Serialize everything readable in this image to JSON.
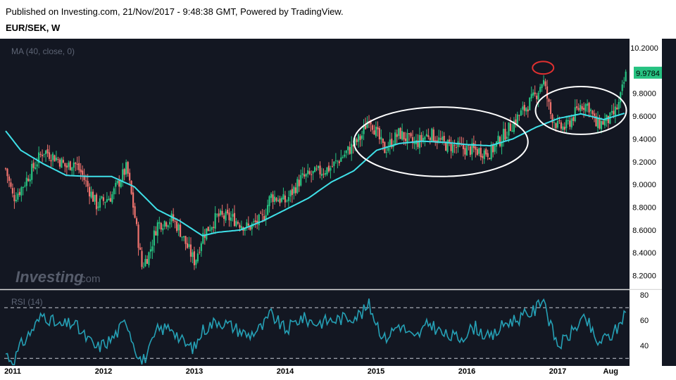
{
  "header": {
    "published": "Published on Investing.com, 21/Nov/2017 - 9:48:38 GMT, Powered by TradingView.",
    "symbol": "EUR/SEK, W"
  },
  "colors": {
    "background": "#131722",
    "up": "#26c281",
    "down": "#f0736e",
    "ma": "#3fe0e8",
    "rsi": "#25a0b5",
    "price_tag": "#26c281",
    "ellipse": "#ffffff",
    "peak_marker": "#e03030"
  },
  "chart_data": [
    {
      "type": "candlestick",
      "indicator_label": "MA (40, close, 0)",
      "y_ticks": [
        "10.2000",
        "9.8000",
        "9.6000",
        "9.4000",
        "9.2000",
        "9.0000",
        "8.8000",
        "8.6000",
        "8.4000",
        "8.2000"
      ],
      "ylim": [
        8.08,
        10.28
      ],
      "last_price": "9.9784",
      "x_ticks": [
        "2011",
        "2012",
        "2013",
        "2014",
        "2015",
        "2016",
        "2017",
        "Aug"
      ],
      "close_anchors": [
        [
          "2011-01",
          9.14
        ],
        [
          "2011-02",
          8.88
        ],
        [
          "2011-03",
          8.96
        ],
        [
          "2011-06",
          9.3
        ],
        [
          "2011-08",
          9.22
        ],
        [
          "2011-09",
          9.15
        ],
        [
          "2011-10",
          9.2
        ],
        [
          "2011-11",
          9.1
        ],
        [
          "2012-01",
          8.82
        ],
        [
          "2012-03",
          8.9
        ],
        [
          "2012-05",
          9.15
        ],
        [
          "2012-06",
          8.75
        ],
        [
          "2012-07",
          8.28
        ],
        [
          "2012-08",
          8.4
        ],
        [
          "2012-09",
          8.65
        ],
        [
          "2012-11",
          8.7
        ],
        [
          "2012-12",
          8.6
        ],
        [
          "2013-01",
          8.45
        ],
        [
          "2013-02",
          8.32
        ],
        [
          "2013-03",
          8.55
        ],
        [
          "2013-05",
          8.72
        ],
        [
          "2013-07",
          8.7
        ],
        [
          "2013-09",
          8.62
        ],
        [
          "2013-11",
          8.7
        ],
        [
          "2013-12",
          8.9
        ],
        [
          "2014-02",
          8.85
        ],
        [
          "2014-04",
          9.05
        ],
        [
          "2014-06",
          9.1
        ],
        [
          "2014-08",
          9.15
        ],
        [
          "2014-10",
          9.28
        ],
        [
          "2014-12",
          9.42
        ],
        [
          "2015-01",
          9.6
        ],
        [
          "2015-03",
          9.3
        ],
        [
          "2015-05",
          9.45
        ],
        [
          "2015-07",
          9.35
        ],
        [
          "2015-09",
          9.45
        ],
        [
          "2015-11",
          9.35
        ],
        [
          "2016-01",
          9.32
        ],
        [
          "2016-03",
          9.3
        ],
        [
          "2016-05",
          9.28
        ],
        [
          "2016-07",
          9.45
        ],
        [
          "2016-09",
          9.62
        ],
        [
          "2016-11",
          9.78
        ],
        [
          "2016-12",
          9.92
        ],
        [
          "2017-01",
          9.62
        ],
        [
          "2017-02",
          9.5
        ],
        [
          "2017-03",
          9.5
        ],
        [
          "2017-04",
          9.6
        ],
        [
          "2017-05",
          9.7
        ],
        [
          "2017-06",
          9.7
        ],
        [
          "2017-07",
          9.52
        ],
        [
          "2017-08",
          9.55
        ],
        [
          "2017-09",
          9.58
        ],
        [
          "2017-10",
          9.7
        ],
        [
          "2017-11",
          9.98
        ]
      ],
      "ma_anchors": [
        [
          "2011-01",
          9.47
        ],
        [
          "2011-03",
          9.3
        ],
        [
          "2011-06",
          9.18
        ],
        [
          "2011-09",
          9.08
        ],
        [
          "2011-12",
          9.07
        ],
        [
          "2012-03",
          9.07
        ],
        [
          "2012-06",
          8.98
        ],
        [
          "2012-09",
          8.78
        ],
        [
          "2012-12",
          8.68
        ],
        [
          "2013-03",
          8.55
        ],
        [
          "2013-05",
          8.58
        ],
        [
          "2013-08",
          8.6
        ],
        [
          "2013-11",
          8.68
        ],
        [
          "2014-02",
          8.78
        ],
        [
          "2014-05",
          8.88
        ],
        [
          "2014-08",
          9.02
        ],
        [
          "2014-11",
          9.12
        ],
        [
          "2015-02",
          9.3
        ],
        [
          "2015-05",
          9.36
        ],
        [
          "2015-08",
          9.38
        ],
        [
          "2015-11",
          9.37
        ],
        [
          "2016-02",
          9.35
        ],
        [
          "2016-05",
          9.34
        ],
        [
          "2016-08",
          9.4
        ],
        [
          "2016-11",
          9.5
        ],
        [
          "2017-02",
          9.58
        ],
        [
          "2017-05",
          9.62
        ],
        [
          "2017-08",
          9.57
        ],
        [
          "2017-11",
          9.63
        ]
      ],
      "annotations": [
        {
          "shape": "ellipse",
          "from": "2014-11",
          "to": "2016-10",
          "ylim": [
            9.07,
            9.68
          ]
        },
        {
          "shape": "ellipse",
          "from": "2016-11",
          "to": "2017-11",
          "ylim": [
            9.44,
            9.86
          ]
        },
        {
          "shape": "ellipse",
          "marker": "peak",
          "at": "2016-12",
          "ylim": [
            9.97,
            10.08
          ]
        }
      ]
    },
    {
      "type": "line",
      "indicator_label": "RSI (14)",
      "y_ticks": [
        "80",
        "60",
        "40"
      ],
      "ylim": [
        24,
        84
      ],
      "levels": [
        70,
        30
      ],
      "rsi_anchors": [
        [
          "2011-01",
          34
        ],
        [
          "2011-02",
          27
        ],
        [
          "2011-03",
          40
        ],
        [
          "2011-06",
          65
        ],
        [
          "2011-08",
          55
        ],
        [
          "2011-10",
          58
        ],
        [
          "2011-11",
          50
        ],
        [
          "2012-01",
          38
        ],
        [
          "2012-03",
          45
        ],
        [
          "2012-05",
          60
        ],
        [
          "2012-06",
          40
        ],
        [
          "2012-07",
          27
        ],
        [
          "2012-08",
          36
        ],
        [
          "2012-09",
          52
        ],
        [
          "2012-11",
          55
        ],
        [
          "2012-12",
          45
        ],
        [
          "2013-01",
          40
        ],
        [
          "2013-02",
          38
        ],
        [
          "2013-03",
          52
        ],
        [
          "2013-05",
          60
        ],
        [
          "2013-07",
          55
        ],
        [
          "2013-09",
          48
        ],
        [
          "2013-11",
          55
        ],
        [
          "2013-12",
          65
        ],
        [
          "2014-02",
          52
        ],
        [
          "2014-04",
          62
        ],
        [
          "2014-06",
          58
        ],
        [
          "2014-08",
          60
        ],
        [
          "2014-10",
          62
        ],
        [
          "2014-12",
          65
        ],
        [
          "2015-01",
          72
        ],
        [
          "2015-03",
          45
        ],
        [
          "2015-05",
          57
        ],
        [
          "2015-07",
          45
        ],
        [
          "2015-09",
          58
        ],
        [
          "2015-11",
          48
        ],
        [
          "2016-01",
          46
        ],
        [
          "2016-03",
          55
        ],
        [
          "2016-05",
          45
        ],
        [
          "2016-07",
          58
        ],
        [
          "2016-09",
          62
        ],
        [
          "2016-11",
          68
        ],
        [
          "2016-12",
          80
        ],
        [
          "2017-01",
          55
        ],
        [
          "2017-02",
          40
        ],
        [
          "2017-03",
          45
        ],
        [
          "2017-04",
          52
        ],
        [
          "2017-05",
          60
        ],
        [
          "2017-06",
          58
        ],
        [
          "2017-07",
          42
        ],
        [
          "2017-08",
          45
        ],
        [
          "2017-09",
          48
        ],
        [
          "2017-10",
          55
        ],
        [
          "2017-11",
          70
        ]
      ]
    }
  ],
  "watermark": {
    "brand": "Investing",
    "domain": ".com"
  }
}
